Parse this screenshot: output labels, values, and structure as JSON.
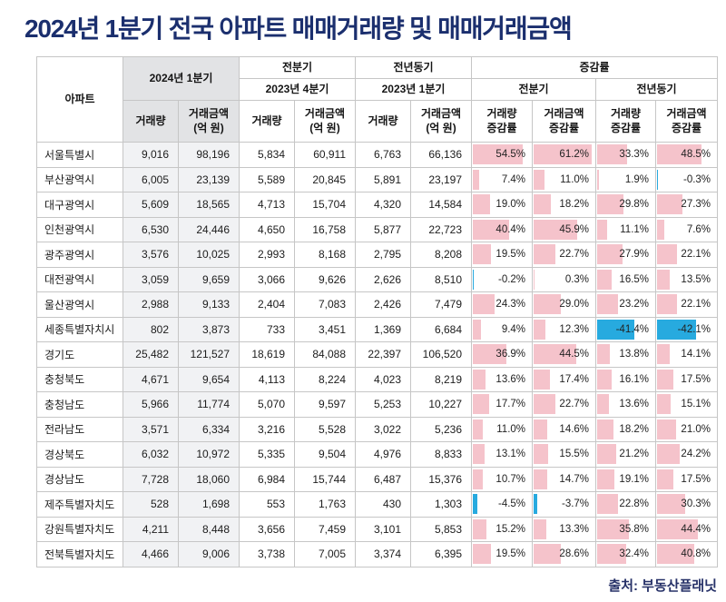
{
  "title": "2024년 1분기 전국 아파트 매매거래량 및 매매거래금액",
  "source": "출처: 부동산플래닛",
  "colors": {
    "title_text": "#1b2f6e",
    "positive_bar": "#f5c3cb",
    "negative_bar": "#27aadf",
    "header_highlight_bg": "#e2e3e5",
    "column_highlight_bg": "#f1f2f4",
    "border": "#c6c6c6"
  },
  "chart_data": {
    "type": "table",
    "title": "2024년 1분기 전국 아파트 매매거래량 및 매매거래금액",
    "corner_label": "아파트",
    "groups": {
      "current": "2024년 1분기",
      "prev_quarter": "전분기",
      "prev_quarter_period": "2023년 4분기",
      "prev_year": "전년동기",
      "prev_year_period": "2023년 1분기",
      "change": "증감률",
      "change_prev_quarter": "전분기",
      "change_prev_year": "전년동기"
    },
    "col_headers": {
      "volume": "거래량",
      "amount": "거래금액\n(억 원)",
      "volume_change": "거래량\n증감률",
      "amount_change": "거래금액\n증감률"
    },
    "bar_scale_max": 62,
    "rows": [
      {
        "region": "서울특별시",
        "values": [
          "9,016",
          "98,196",
          "5,834",
          "60,911",
          "6,763",
          "66,136"
        ],
        "changes": [
          54.5,
          61.2,
          33.3,
          48.5
        ]
      },
      {
        "region": "부산광역시",
        "values": [
          "6,005",
          "23,139",
          "5,589",
          "20,845",
          "5,891",
          "23,197"
        ],
        "changes": [
          7.4,
          11.0,
          1.9,
          -0.3
        ]
      },
      {
        "region": "대구광역시",
        "values": [
          "5,609",
          "18,565",
          "4,713",
          "15,704",
          "4,320",
          "14,584"
        ],
        "changes": [
          19.0,
          18.2,
          29.8,
          27.3
        ]
      },
      {
        "region": "인천광역시",
        "values": [
          "6,530",
          "24,446",
          "4,650",
          "16,758",
          "5,877",
          "22,723"
        ],
        "changes": [
          40.4,
          45.9,
          11.1,
          7.6
        ]
      },
      {
        "region": "광주광역시",
        "values": [
          "3,576",
          "10,025",
          "2,993",
          "8,168",
          "2,795",
          "8,208"
        ],
        "changes": [
          19.5,
          22.7,
          27.9,
          22.1
        ]
      },
      {
        "region": "대전광역시",
        "values": [
          "3,059",
          "9,659",
          "3,066",
          "9,626",
          "2,626",
          "8,510"
        ],
        "changes": [
          -0.2,
          0.3,
          16.5,
          13.5
        ]
      },
      {
        "region": "울산광역시",
        "values": [
          "2,988",
          "9,133",
          "2,404",
          "7,083",
          "2,426",
          "7,479"
        ],
        "changes": [
          24.3,
          29.0,
          23.2,
          22.1
        ]
      },
      {
        "region": "세종특별자치시",
        "values": [
          "802",
          "3,873",
          "733",
          "3,451",
          "1,369",
          "6,684"
        ],
        "changes": [
          9.4,
          12.3,
          -41.4,
          -42.1
        ]
      },
      {
        "region": "경기도",
        "values": [
          "25,482",
          "121,527",
          "18,619",
          "84,088",
          "22,397",
          "106,520"
        ],
        "changes": [
          36.9,
          44.5,
          13.8,
          14.1
        ]
      },
      {
        "region": "충청북도",
        "values": [
          "4,671",
          "9,654",
          "4,113",
          "8,224",
          "4,023",
          "8,219"
        ],
        "changes": [
          13.6,
          17.4,
          16.1,
          17.5
        ]
      },
      {
        "region": "충청남도",
        "values": [
          "5,966",
          "11,774",
          "5,070",
          "9,597",
          "5,253",
          "10,227"
        ],
        "changes": [
          17.7,
          22.7,
          13.6,
          15.1
        ]
      },
      {
        "region": "전라남도",
        "values": [
          "3,571",
          "6,334",
          "3,216",
          "5,528",
          "3,022",
          "5,236"
        ],
        "changes": [
          11.0,
          14.6,
          18.2,
          21.0
        ]
      },
      {
        "region": "경상북도",
        "values": [
          "6,032",
          "10,972",
          "5,335",
          "9,504",
          "4,976",
          "8,833"
        ],
        "changes": [
          13.1,
          15.5,
          21.2,
          24.2
        ]
      },
      {
        "region": "경상남도",
        "values": [
          "7,728",
          "18,060",
          "6,984",
          "15,744",
          "6,487",
          "15,376"
        ],
        "changes": [
          10.7,
          14.7,
          19.1,
          17.5
        ]
      },
      {
        "region": "제주특별자치도",
        "values": [
          "528",
          "1,698",
          "553",
          "1,763",
          "430",
          "1,303"
        ],
        "changes": [
          -4.5,
          -3.7,
          22.8,
          30.3
        ]
      },
      {
        "region": "강원특별자치도",
        "values": [
          "4,211",
          "8,448",
          "3,656",
          "7,459",
          "3,101",
          "5,853"
        ],
        "changes": [
          15.2,
          13.3,
          35.8,
          44.4
        ]
      },
      {
        "region": "전북특별자치도",
        "values": [
          "4,466",
          "9,006",
          "3,738",
          "7,005",
          "3,374",
          "6,395"
        ],
        "changes": [
          19.5,
          28.6,
          32.4,
          40.8
        ]
      }
    ]
  }
}
